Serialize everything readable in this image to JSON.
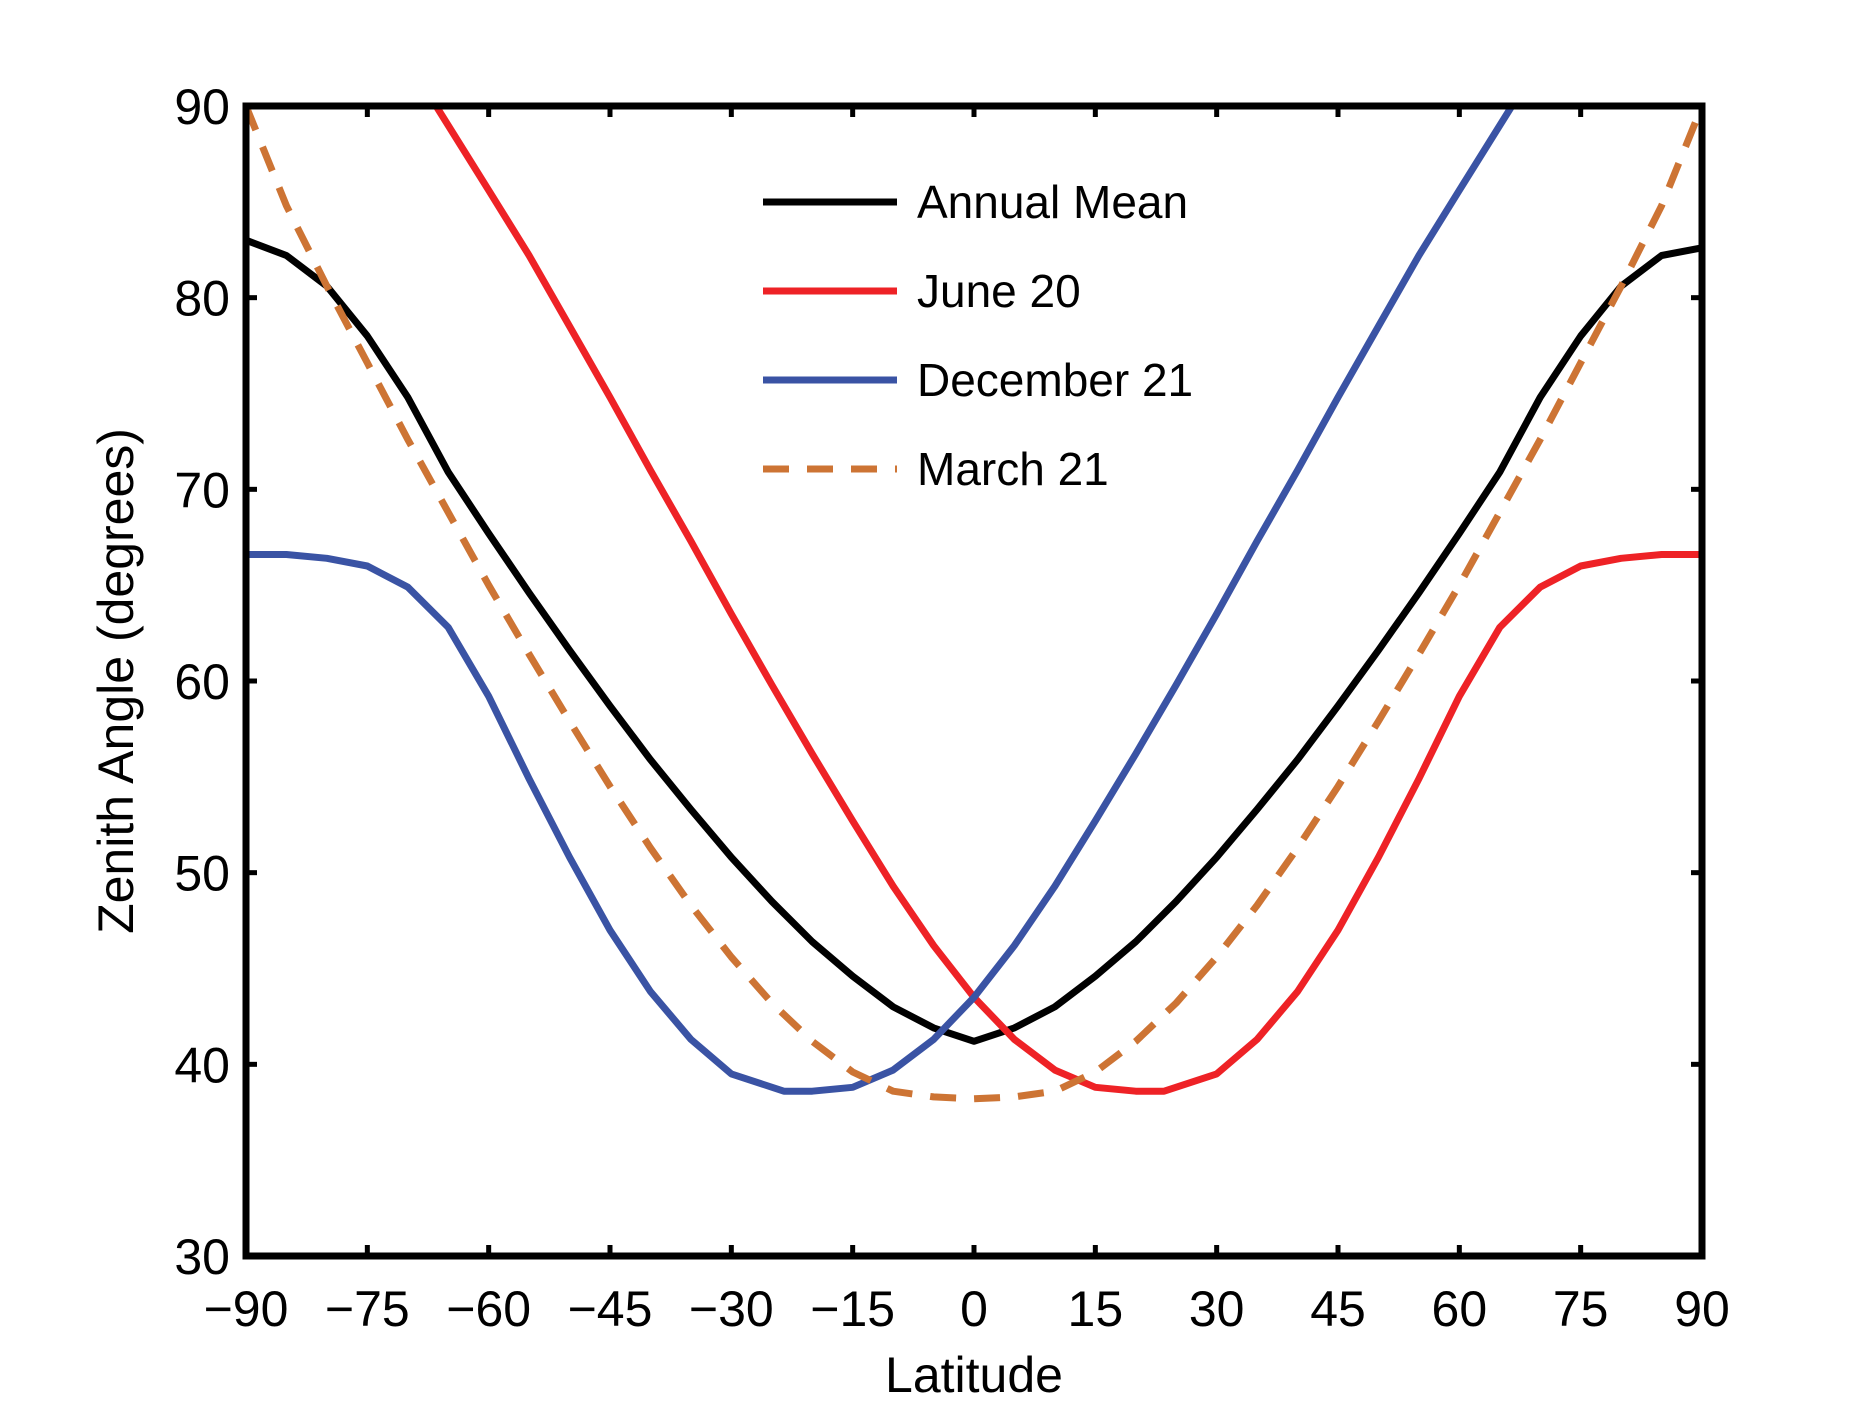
{
  "chart_data": {
    "type": "line",
    "title": "",
    "xlabel": "Latitude",
    "ylabel": "Zenith Angle (degrees)",
    "xlim": [
      -90,
      90
    ],
    "ylim": [
      30,
      90
    ],
    "xticks": [
      -90,
      -75,
      -60,
      -45,
      -30,
      -15,
      0,
      15,
      30,
      45,
      60,
      75,
      90
    ],
    "xtick_labels": [
      "−90",
      "−75",
      "−60",
      "−45",
      "−30",
      "−15",
      "0",
      "15",
      "30",
      "45",
      "60",
      "75",
      "90"
    ],
    "yticks": [
      30,
      40,
      50,
      60,
      70,
      80,
      90
    ],
    "ytick_labels": [
      "30",
      "40",
      "50",
      "60",
      "70",
      "80",
      "90"
    ],
    "grid": false,
    "legend_position": "top-center",
    "series": [
      {
        "name": "Annual Mean",
        "color": "#000000",
        "dash": "solid",
        "x": [
          -90,
          -85,
          -80,
          -75,
          -70,
          -65,
          -60,
          -55,
          -50,
          -45,
          -40,
          -35,
          -30,
          -25,
          -20,
          -15,
          -10,
          -5,
          0,
          5,
          10,
          15,
          20,
          25,
          30,
          35,
          40,
          45,
          50,
          55,
          60,
          65,
          70,
          75,
          80,
          85,
          90
        ],
        "y": [
          83.0,
          82.2,
          80.6,
          78.0,
          74.8,
          70.9,
          67.7,
          64.6,
          61.6,
          58.7,
          55.9,
          53.3,
          50.8,
          48.5,
          46.4,
          44.6,
          43.0,
          41.9,
          41.2,
          41.9,
          43.0,
          44.6,
          46.4,
          48.5,
          50.8,
          53.3,
          55.9,
          58.7,
          61.6,
          64.6,
          67.7,
          70.9,
          74.8,
          78.0,
          80.6,
          82.2,
          82.6
        ]
      },
      {
        "name": "June 20",
        "color": "#ee2226",
        "dash": "solid",
        "x": [
          -66.5,
          -60,
          -55,
          -50,
          -45,
          -40,
          -35,
          -30,
          -25,
          -20,
          -15,
          -10,
          -5,
          0,
          5,
          10,
          15,
          20,
          23.5,
          30,
          35,
          40,
          45,
          50,
          55,
          60,
          65,
          70,
          75,
          80,
          85,
          90
        ],
        "y": [
          90.0,
          85.6,
          82.2,
          78.5,
          74.8,
          71.0,
          67.3,
          63.5,
          59.8,
          56.2,
          52.7,
          49.3,
          46.2,
          43.5,
          41.3,
          39.7,
          38.8,
          38.6,
          38.6,
          39.5,
          41.3,
          43.8,
          47.0,
          50.8,
          54.9,
          59.2,
          62.8,
          64.9,
          66.0,
          66.4,
          66.6,
          66.6
        ]
      },
      {
        "name": "December 21",
        "color": "#3a53a4",
        "dash": "solid",
        "x": [
          -90,
          -85,
          -80,
          -75,
          -70,
          -65,
          -60,
          -55,
          -50,
          -45,
          -40,
          -35,
          -30,
          -23.5,
          -20,
          -15,
          -10,
          -5,
          0,
          5,
          10,
          15,
          20,
          25,
          30,
          35,
          40,
          45,
          50,
          55,
          60,
          66.5
        ],
        "y": [
          66.6,
          66.6,
          66.4,
          66.0,
          64.9,
          62.8,
          59.2,
          54.9,
          50.8,
          47.0,
          43.8,
          41.3,
          39.5,
          38.6,
          38.6,
          38.8,
          39.7,
          41.3,
          43.5,
          46.2,
          49.3,
          52.7,
          56.2,
          59.8,
          63.5,
          67.3,
          71.0,
          74.8,
          78.5,
          82.2,
          85.6,
          90.0
        ]
      },
      {
        "name": "March 21",
        "color": "#cd7434",
        "dash": "dashed",
        "x": [
          -90,
          -85,
          -80,
          -75,
          -70,
          -65,
          -60,
          -55,
          -50,
          -45,
          -40,
          -35,
          -30,
          -25,
          -20,
          -15,
          -10,
          -5,
          0,
          5,
          10,
          15,
          20,
          25,
          30,
          35,
          40,
          45,
          50,
          55,
          60,
          65,
          70,
          75,
          80,
          85,
          90
        ],
        "y": [
          90.0,
          84.8,
          80.6,
          76.6,
          72.6,
          68.8,
          65.0,
          61.4,
          57.9,
          54.5,
          51.3,
          48.3,
          45.6,
          43.2,
          41.2,
          39.6,
          38.6,
          38.3,
          38.2,
          38.3,
          38.6,
          39.6,
          41.2,
          43.2,
          45.6,
          48.3,
          51.3,
          54.5,
          57.9,
          61.4,
          65.0,
          68.8,
          72.6,
          76.6,
          80.6,
          84.8,
          90.0
        ]
      }
    ]
  }
}
